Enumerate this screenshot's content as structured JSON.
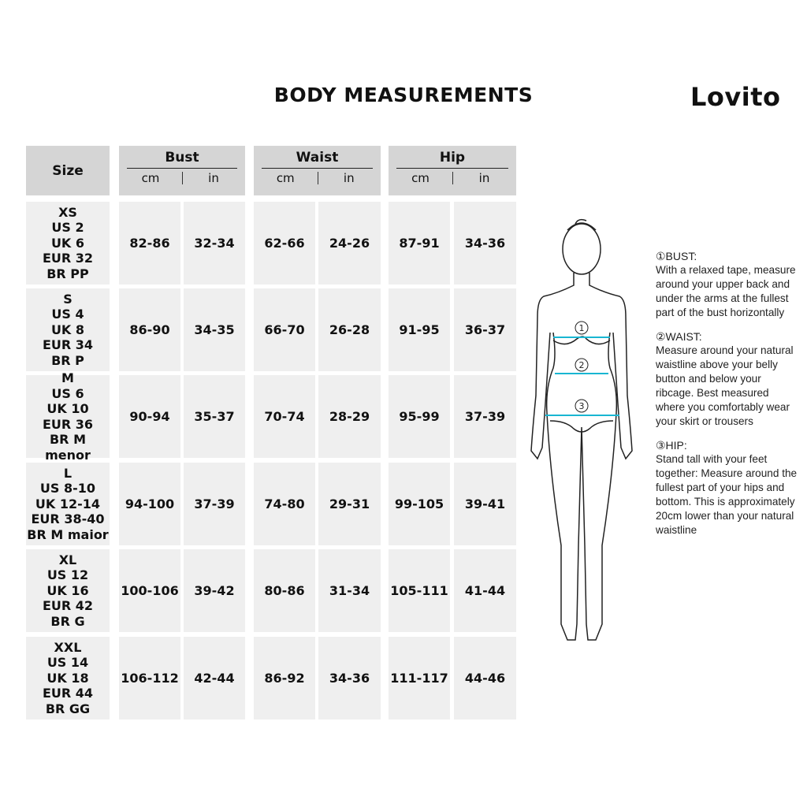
{
  "title": "BODY MEASUREMENTS",
  "brand": "Lovito",
  "table": {
    "size_header": "Size",
    "groups": [
      {
        "name": "Bust",
        "units": [
          "cm",
          "in"
        ]
      },
      {
        "name": "Waist",
        "units": [
          "cm",
          "in"
        ]
      },
      {
        "name": "Hip",
        "units": [
          "cm",
          "in"
        ]
      }
    ],
    "rows": [
      {
        "size": "XS\nUS 2\nUK 6\nEUR 32\nBR PP",
        "values": [
          "82-86",
          "32-34",
          "62-66",
          "24-26",
          "87-91",
          "34-36"
        ]
      },
      {
        "size": "S\nUS 4\nUK 8\nEUR 34\nBR P",
        "values": [
          "86-90",
          "34-35",
          "66-70",
          "26-28",
          "91-95",
          "36-37"
        ]
      },
      {
        "size": "M\nUS 6\nUK 10\nEUR 36\nBR M menor",
        "values": [
          "90-94",
          "35-37",
          "70-74",
          "28-29",
          "95-99",
          "37-39"
        ]
      },
      {
        "size": "L\nUS 8-10\nUK 12-14\nEUR 38-40\nBR M maior",
        "values": [
          "94-100",
          "37-39",
          "74-80",
          "29-31",
          "99-105",
          "39-41"
        ]
      },
      {
        "size": "XL\nUS 12\nUK 16\nEUR 42\nBR G",
        "values": [
          "100-106",
          "39-42",
          "80-86",
          "31-34",
          "105-111",
          "41-44"
        ]
      },
      {
        "size": "XXL\nUS 14\nUK 18\nEUR 44\nBR GG",
        "values": [
          "106-112",
          "42-44",
          "86-92",
          "34-36",
          "111-117",
          "44-46"
        ]
      }
    ]
  },
  "figure": {
    "markers": [
      "1",
      "2",
      "3"
    ],
    "tape_color": "#19b6d2"
  },
  "instructions": [
    {
      "heading": "①BUST:",
      "text": "With a relaxed tape, measure around your upper back and under the arms at the fullest part of the bust horizontally"
    },
    {
      "heading": "②WAIST:",
      "text": "Measure around your natural waistline above your belly button and below your ribcage. Best measured where you comfortably wear your skirt or trousers"
    },
    {
      "heading": "③HIP:",
      "text": "Stand tall with your feet together: Measure around the fullest part of your hips and bottom. This is approximately 20cm lower than your natural waistline"
    }
  ]
}
